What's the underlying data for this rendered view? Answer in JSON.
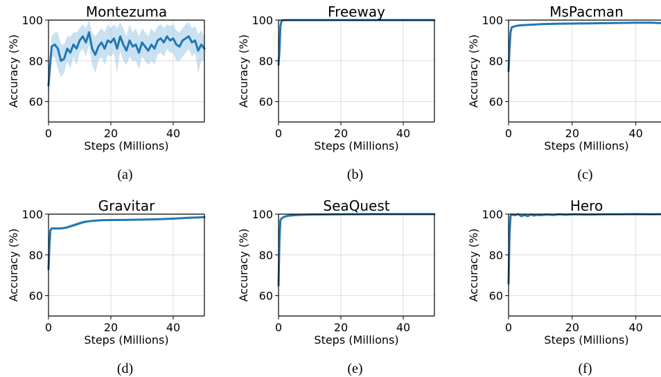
{
  "colors": {
    "line": "#1f77b4",
    "band": "#9ec9e8"
  },
  "chart_data": [
    {
      "type": "line",
      "title": "Montezuma",
      "caption": "(a)",
      "xlabel": "Steps (Millions)",
      "ylabel": "Accuracy (%)",
      "xlim": [
        0,
        50
      ],
      "ylim": [
        50,
        100
      ],
      "xticks": [
        0,
        20,
        40
      ],
      "yticks": [
        60,
        80,
        100
      ],
      "grid": true,
      "series": [
        {
          "x": [
            0,
            1,
            2,
            3,
            4,
            5,
            6,
            7,
            8,
            9,
            10,
            11,
            12,
            13,
            14,
            15,
            16,
            17,
            18,
            19,
            20,
            21,
            22,
            23,
            24,
            25,
            26,
            27,
            28,
            29,
            30,
            31,
            32,
            33,
            34,
            35,
            36,
            37,
            38,
            39,
            40,
            41,
            42,
            43,
            44,
            45,
            46,
            47,
            48,
            49,
            50
          ],
          "y": [
            68,
            87,
            88,
            86,
            80,
            81,
            86,
            84,
            88,
            86,
            90,
            92,
            89,
            94,
            86,
            83,
            87,
            89,
            86,
            90,
            89,
            91,
            86,
            92,
            88,
            85,
            90,
            87,
            88,
            84,
            89,
            87,
            85,
            88,
            86,
            90,
            91,
            89,
            92,
            90,
            91,
            88,
            87,
            90,
            91,
            92,
            89,
            90,
            85,
            88,
            86
          ],
          "lower": [
            60,
            82,
            82,
            76,
            72,
            74,
            80,
            76,
            82,
            78,
            84,
            86,
            82,
            88,
            78,
            74,
            80,
            82,
            78,
            83,
            82,
            84,
            74,
            85,
            80,
            78,
            82,
            80,
            80,
            76,
            82,
            80,
            78,
            80,
            78,
            83,
            84,
            82,
            86,
            84,
            84,
            80,
            80,
            82,
            84,
            86,
            82,
            84,
            74,
            80,
            80
          ],
          "upper": [
            74,
            92,
            94,
            94,
            88,
            88,
            92,
            92,
            94,
            94,
            96,
            98,
            96,
            100,
            94,
            92,
            94,
            96,
            94,
            98,
            96,
            98,
            96,
            99,
            96,
            92,
            98,
            94,
            96,
            92,
            96,
            94,
            92,
            96,
            94,
            97,
            98,
            96,
            98,
            97,
            98,
            95,
            94,
            96,
            98,
            99,
            96,
            97,
            93,
            95,
            92
          ]
        }
      ]
    },
    {
      "type": "line",
      "title": "Freeway",
      "caption": "(b)",
      "xlabel": "Steps (Millions)",
      "ylabel": "Accuracy (%)",
      "xlim": [
        0,
        50
      ],
      "ylim": [
        50,
        100
      ],
      "xticks": [
        0,
        20,
        40
      ],
      "yticks": [
        60,
        80,
        100
      ],
      "grid": true,
      "series": [
        {
          "x": [
            0,
            0.3,
            0.6,
            1,
            2,
            5,
            10,
            20,
            30,
            40,
            50
          ],
          "y": [
            78,
            85,
            97,
            99.8,
            100,
            100,
            100,
            100,
            100,
            100,
            100
          ]
        }
      ]
    },
    {
      "type": "line",
      "title": "MsPacman",
      "caption": "(c)",
      "xlabel": "Steps (Millions)",
      "ylabel": "Accuracy (%)",
      "xlim": [
        0,
        49
      ],
      "ylim": [
        50,
        100
      ],
      "xticks": [
        0,
        20,
        40
      ],
      "yticks": [
        60,
        80,
        100
      ],
      "grid": true,
      "series": [
        {
          "x": [
            0,
            0.3,
            0.6,
            1,
            2,
            3,
            5,
            8,
            10,
            15,
            20,
            25,
            30,
            35,
            40,
            45,
            48,
            49
          ],
          "y": [
            75,
            86,
            94,
            96.5,
            97,
            97.3,
            97.6,
            97.8,
            98,
            98.2,
            98.3,
            98.4,
            98.5,
            98.6,
            98.7,
            98.7,
            98.5,
            98.6
          ],
          "lower": [
            73,
            84,
            93,
            96,
            96.5,
            96.8,
            97.1,
            97.3,
            97.5,
            97.7,
            97.8,
            97.9,
            98,
            98.1,
            98.2,
            98.2,
            98,
            98.1
          ],
          "upper": [
            77,
            88,
            95,
            97,
            97.5,
            97.8,
            98.1,
            98.3,
            98.5,
            98.7,
            98.8,
            98.9,
            99,
            99.1,
            99.2,
            99.2,
            99,
            99.1
          ]
        }
      ]
    },
    {
      "type": "line",
      "title": "Gravitar",
      "caption": "(d)",
      "xlabel": "Steps (Millions)",
      "ylabel": "Accuracy (%)",
      "xlim": [
        0,
        50
      ],
      "ylim": [
        50,
        100
      ],
      "xticks": [
        0,
        20,
        40
      ],
      "yticks": [
        60,
        80,
        100
      ],
      "grid": true,
      "series": [
        {
          "x": [
            0,
            0.3,
            0.6,
            1,
            2,
            3,
            4,
            5,
            6,
            7,
            8,
            9,
            10,
            11,
            12,
            13,
            14,
            15,
            17,
            20,
            25,
            30,
            35,
            40,
            45,
            50
          ],
          "y": [
            73,
            84,
            92,
            93,
            93,
            93,
            93,
            93.2,
            93.5,
            94,
            94.5,
            95,
            95.5,
            96,
            96.3,
            96.5,
            96.7,
            96.8,
            97,
            97.1,
            97.2,
            97.3,
            97.5,
            97.8,
            98.2,
            98.5
          ],
          "lower": [
            72,
            83,
            91.5,
            92.5,
            92.5,
            92.5,
            92.5,
            92.7,
            92.9,
            93.3,
            93.7,
            94.1,
            94.6,
            95.2,
            95.7,
            96,
            96.3,
            96.5,
            96.7,
            96.8,
            96.9,
            97,
            97.2,
            97.5,
            97.9,
            98.2
          ],
          "upper": [
            74,
            85,
            92.5,
            93.5,
            93.5,
            93.5,
            93.5,
            93.7,
            94.1,
            94.7,
            95.3,
            95.9,
            96.4,
            96.8,
            96.9,
            97,
            97.1,
            97.1,
            97.3,
            97.4,
            97.5,
            97.6,
            97.8,
            98.1,
            98.5,
            98.8
          ]
        }
      ]
    },
    {
      "type": "line",
      "title": "SeaQuest",
      "caption": "(e)",
      "xlabel": "Steps (Millions)",
      "ylabel": "Accuracy (%)",
      "xlim": [
        0,
        50
      ],
      "ylim": [
        50,
        100
      ],
      "xticks": [
        0,
        20,
        40
      ],
      "yticks": [
        60,
        80,
        100
      ],
      "grid": true,
      "series": [
        {
          "x": [
            0,
            0.3,
            0.6,
            1,
            2,
            3,
            5,
            8,
            10,
            20,
            30,
            40,
            50
          ],
          "y": [
            65,
            88,
            97,
            98,
            98.8,
            99.2,
            99.5,
            99.7,
            99.8,
            99.9,
            100,
            100,
            100
          ]
        }
      ]
    },
    {
      "type": "line",
      "title": "Hero",
      "caption": "(f)",
      "xlabel": "Steps (Millions)",
      "ylabel": "Accuracy (%)",
      "xlim": [
        0,
        49
      ],
      "ylim": [
        50,
        100
      ],
      "xticks": [
        0,
        20,
        40
      ],
      "yticks": [
        60,
        80,
        100
      ],
      "grid": true,
      "series": [
        {
          "x": [
            0,
            0.3,
            0.6,
            1,
            2,
            3,
            4,
            5,
            6,
            7,
            8,
            9,
            10,
            12,
            14,
            16,
            18,
            20,
            25,
            30,
            35,
            40,
            45,
            49
          ],
          "y": [
            66,
            90,
            99,
            99.8,
            99.5,
            100,
            99,
            99.6,
            99,
            99.8,
            99.3,
            99.7,
            99.5,
            99.8,
            99.6,
            99.9,
            99.7,
            99.9,
            99.8,
            99.9,
            99.9,
            100,
            99.9,
            100
          ]
        }
      ]
    }
  ]
}
